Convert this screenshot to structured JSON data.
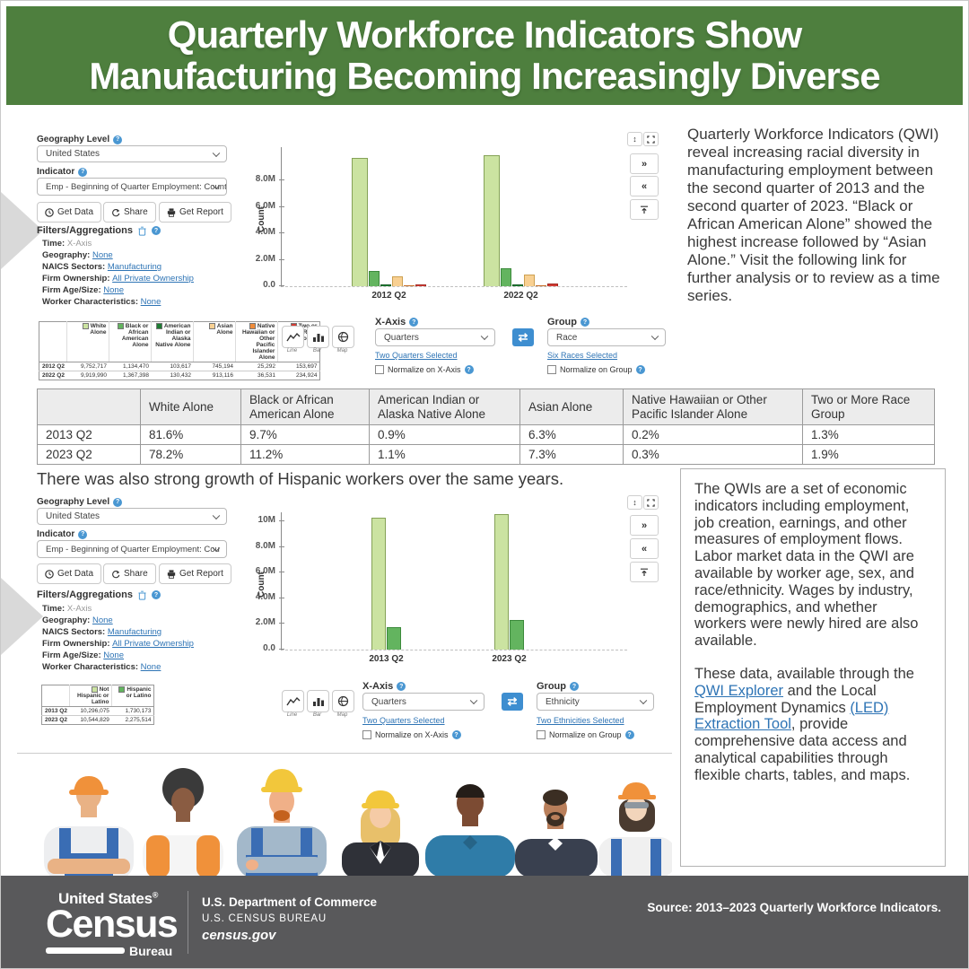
{
  "header": {
    "title_line1": "Quarterly Workforce Indicators Show",
    "title_line2": "Manufacturing Becoming Increasingly Diverse"
  },
  "icons": {
    "help": "?",
    "fast_forward": "»",
    "rewind": "«",
    "v_resize": "↕",
    "swap": "⇄"
  },
  "colors": {
    "header_green": "#4e7f3e",
    "footer_gray": "#59595b",
    "link_blue": "#2e74b5",
    "swap_blue": "#3e8ed0"
  },
  "panel1": {
    "geography_label": "Geography Level",
    "geography_value": "United States",
    "indicator_label": "Indicator",
    "indicator_value": "Emp - Beginning of Quarter Employment: Count:",
    "buttons": {
      "get_data": "Get Data",
      "share": "Share",
      "get_report": "Get Report"
    },
    "filters_heading": "Filters/Aggregations",
    "filters": [
      {
        "label": "Time:",
        "value": "X-Axis",
        "link": false
      },
      {
        "label": "Geography:",
        "value": "None",
        "link": true
      },
      {
        "label": "NAICS Sectors:",
        "value": "Manufacturing",
        "link": true
      },
      {
        "label": "Firm Ownership:",
        "value": "All Private Ownership",
        "link": true
      },
      {
        "label": "Firm Age/Size:",
        "value": "None",
        "link": true
      },
      {
        "label": "Worker Characteristics:",
        "value": "None",
        "link": true
      }
    ],
    "chart_type_buttons": [
      "Line",
      "Bar",
      "Map"
    ],
    "xaxis": {
      "label": "X-Axis",
      "value": "Quarters",
      "selected_link": "Two Quarters Selected",
      "normalize": "Normalize on X-Axis"
    },
    "group": {
      "label": "Group",
      "value": "Race",
      "selected_link": "Six Races Selected",
      "normalize": "Normalize on Group"
    }
  },
  "panel2": {
    "geography_label": "Geography Level",
    "geography_value": "United States",
    "indicator_label": "Indicator",
    "indicator_value": "Emp - Beginning of Quarter Employment: Cou",
    "buttons": {
      "get_data": "Get Data",
      "share": "Share",
      "get_report": "Get Report"
    },
    "filters_heading": "Filters/Aggregations",
    "filters": [
      {
        "label": "Time:",
        "value": "X-Axis",
        "link": false
      },
      {
        "label": "Geography:",
        "value": "None",
        "link": true
      },
      {
        "label": "NAICS Sectors:",
        "value": "Manufacturing",
        "link": true
      },
      {
        "label": "Firm Ownership:",
        "value": "All Private Ownership",
        "link": true
      },
      {
        "label": "Firm Age/Size:",
        "value": "None",
        "link": true
      },
      {
        "label": "Worker Characteristics:",
        "value": "None",
        "link": true
      }
    ],
    "chart_type_buttons": [
      "Line",
      "Bar",
      "Map"
    ],
    "xaxis": {
      "label": "X-Axis",
      "value": "Quarters",
      "selected_link": "Two Quarters Selected",
      "normalize": "Normalize on X-Axis"
    },
    "group": {
      "label": "Group",
      "value": "Ethnicity",
      "selected_link": "Two Ethnicities Selected",
      "normalize": "Normalize on Group"
    }
  },
  "chart_data": [
    {
      "type": "bar",
      "title": "",
      "xlabel": "",
      "ylabel": "Count",
      "categories": [
        "2012 Q2",
        "2022 Q2"
      ],
      "series": [
        {
          "name": "White Alone",
          "color": "#cbe3a1",
          "border": "#85a257",
          "values": [
            9752717,
            9919990
          ]
        },
        {
          "name": "Black or African American Alone",
          "color": "#63b45f",
          "border": "#3c8a3c",
          "values": [
            1134470,
            1367398
          ]
        },
        {
          "name": "American Indian or Alaska Native Alone",
          "color": "#1e7c33",
          "border": "#145a23",
          "values": [
            103617,
            130432
          ]
        },
        {
          "name": "Asian Alone",
          "color": "#f8d092",
          "border": "#cda050",
          "values": [
            745194,
            913116
          ]
        },
        {
          "name": "Native Hawaiian or Other Pacific Islander Alone",
          "color": "#ef8c3a",
          "border": "#c56a22",
          "values": [
            25292,
            36531
          ]
        },
        {
          "name": "Two or More Race Groups",
          "color": "#d23c35",
          "border": "#a32922",
          "values": [
            153697,
            234924
          ]
        }
      ],
      "ymax": 10550000,
      "yticks": [
        {
          "label": "8.0M",
          "value": 8000000
        },
        {
          "label": "6.0M",
          "value": 6000000
        },
        {
          "label": "4.0M",
          "value": 4000000
        },
        {
          "label": "2.0M",
          "value": 2000000
        },
        {
          "label": "0.0",
          "value": 0
        }
      ],
      "legend_position": "bottom-left table",
      "grid": false
    },
    {
      "type": "bar",
      "title": "",
      "xlabel": "",
      "ylabel": "Count",
      "categories": [
        "2013 Q2",
        "2023 Q2"
      ],
      "series": [
        {
          "name": "Not Hispanic or Latino",
          "color": "#cbe3a1",
          "border": "#85a257",
          "values": [
            10296075,
            10544829
          ]
        },
        {
          "name": "Hispanic or Latino",
          "color": "#63b45f",
          "border": "#3c8a3c",
          "values": [
            1730173,
            2275514
          ]
        }
      ],
      "ymax": 10700000,
      "yticks": [
        {
          "label": "10M",
          "value": 10000000
        },
        {
          "label": "8.0M",
          "value": 8000000
        },
        {
          "label": "6.0M",
          "value": 6000000
        },
        {
          "label": "4.0M",
          "value": 4000000
        },
        {
          "label": "2.0M",
          "value": 2000000
        },
        {
          "label": "0.0",
          "value": 0
        }
      ],
      "legend_position": "bottom-left table",
      "grid": false
    }
  ],
  "legend1": {
    "headers": [
      {
        "label": "White Alone",
        "color": "#cbe3a1"
      },
      {
        "label": "Black or African American Alone",
        "color": "#63b45f"
      },
      {
        "label": "American Indian or Alaska Native Alone",
        "color": "#1e7c33"
      },
      {
        "label": "Asian Alone",
        "color": "#f8d092"
      },
      {
        "label": "Native Hawaiian or Other Pacific Islander Alone",
        "color": "#ef8c3a"
      },
      {
        "label": "Two or More Race Groups",
        "color": "#d23c35"
      }
    ],
    "rows": [
      {
        "label": "2012 Q2",
        "values": [
          "9,752,717",
          "1,134,470",
          "103,617",
          "745,194",
          "25,292",
          "153,697"
        ]
      },
      {
        "label": "2022 Q2",
        "values": [
          "9,919,990",
          "1,367,398",
          "130,432",
          "913,116",
          "36,531",
          "234,924"
        ]
      }
    ]
  },
  "legend2": {
    "headers": [
      {
        "label": "Not Hispanic or Latino",
        "color": "#cbe3a1"
      },
      {
        "label": "Hispanic or Latino",
        "color": "#63b45f"
      }
    ],
    "rows": [
      {
        "label": "2013 Q2",
        "values": [
          "10,296,075",
          "1,730,173"
        ]
      },
      {
        "label": "2023 Q2",
        "values": [
          "10,544,829",
          "2,275,514"
        ]
      }
    ]
  },
  "race_table": {
    "headers": [
      "",
      "White Alone",
      "Black or African American Alone",
      "American Indian or Alaska Native Alone",
      "Asian Alone",
      "Native Hawaiian or Other Pacific Islander Alone",
      "Two or More Race Group"
    ],
    "rows": [
      [
        "2013 Q2",
        "81.6%",
        "9.7%",
        "0.9%",
        "6.3%",
        "0.2%",
        "1.3%"
      ],
      [
        "2023 Q2",
        "78.2%",
        "11.2%",
        "1.1%",
        "7.3%",
        "0.3%",
        "1.9%"
      ]
    ]
  },
  "paragraph1": "Quarterly Workforce Indicators (QWI) reveal increasing racial diversity in manufacturing employment between the second quarter of 2013 and the second quarter of 2023. “Black or African American Alone” showed the highest increase followed by “Asian Alone.” Visit the following link for further analysis or to review as a time series.",
  "hispanic_sentence": "There was also strong growth of Hispanic workers over the same years.",
  "info_box": {
    "p1": "The QWIs are a set of economic indicators including employment, job creation, earnings, and other measures of employment flows. Labor market data in the QWI are available by worker age, sex, and race/ethnicity. Wages by industry, demographics, and whether workers were newly hired are also available.",
    "p2": [
      "These data, available through the ",
      "QWI Explorer",
      " and the Local Employment Dynamics ",
      "(LED)",
      " ",
      "Extraction Tool",
      ", provide comprehensive data access and analytical capabilities through flexible charts, tables, and maps."
    ]
  },
  "footer": {
    "logo_top": "United States",
    "logo_reg": "®",
    "logo_main": "Census",
    "logo_sub": "Bureau",
    "dept_line1": "U.S. Department of Commerce",
    "dept_line2": "U.S. CENSUS BUREAU",
    "dept_line3": "census.gov",
    "source": "Source: 2013–2023 Quarterly Workforce Indicators."
  }
}
